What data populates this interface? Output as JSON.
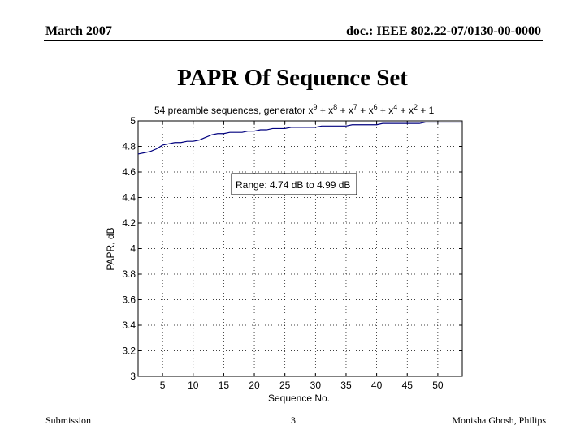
{
  "header": {
    "date": "March 2007",
    "doc_id": "doc.: IEEE 802.22-07/0130-00-0000"
  },
  "slide": {
    "title": "PAPR Of Sequence Set"
  },
  "footer": {
    "left": "Submission",
    "page": "3",
    "author": "Monisha Ghosh, Philips"
  },
  "chart_data": {
    "type": "line",
    "title_prefix": "54 preamble sequences, generator x",
    "title_terms": [
      {
        "exp": "9",
        "after": " + x"
      },
      {
        "exp": "8",
        "after": " + x"
      },
      {
        "exp": "7",
        "after": " + x"
      },
      {
        "exp": "6",
        "after": " + x"
      },
      {
        "exp": "4",
        "after": " + x"
      },
      {
        "exp": "2",
        "after": " + 1"
      }
    ],
    "xlabel": "Sequence No.",
    "ylabel": "PAPR, dB",
    "xlim": [
      1,
      54
    ],
    "ylim": [
      3,
      5
    ],
    "xticks": [
      5,
      10,
      15,
      20,
      25,
      30,
      35,
      40,
      45,
      50
    ],
    "yticks": [
      3,
      3.2,
      3.4,
      3.6,
      3.8,
      4,
      4.2,
      4.4,
      4.6,
      4.8,
      5
    ],
    "grid": true,
    "line_color": "#00007f",
    "annotation": "Range: 4.74 dB to 4.99 dB",
    "series": [
      {
        "x": [
          1,
          2,
          3,
          4,
          5,
          6,
          7,
          8,
          9,
          10,
          11,
          12,
          13,
          14,
          15,
          16,
          17,
          18,
          19,
          20,
          21,
          22,
          23,
          24,
          25,
          26,
          27,
          28,
          29,
          30,
          31,
          32,
          33,
          34,
          35,
          36,
          37,
          38,
          39,
          40,
          41,
          42,
          43,
          44,
          45,
          46,
          47,
          48,
          49,
          50,
          51,
          52,
          53,
          54
        ],
        "values": [
          4.74,
          4.75,
          4.76,
          4.78,
          4.81,
          4.82,
          4.83,
          4.83,
          4.84,
          4.84,
          4.85,
          4.87,
          4.89,
          4.9,
          4.9,
          4.91,
          4.91,
          4.91,
          4.92,
          4.92,
          4.93,
          4.93,
          4.94,
          4.94,
          4.94,
          4.95,
          4.95,
          4.95,
          4.95,
          4.95,
          4.96,
          4.96,
          4.96,
          4.96,
          4.96,
          4.97,
          4.97,
          4.97,
          4.97,
          4.97,
          4.98,
          4.98,
          4.98,
          4.98,
          4.98,
          4.98,
          4.98,
          4.99,
          4.99,
          4.99,
          4.99,
          4.99,
          4.99,
          4.99
        ]
      }
    ]
  }
}
